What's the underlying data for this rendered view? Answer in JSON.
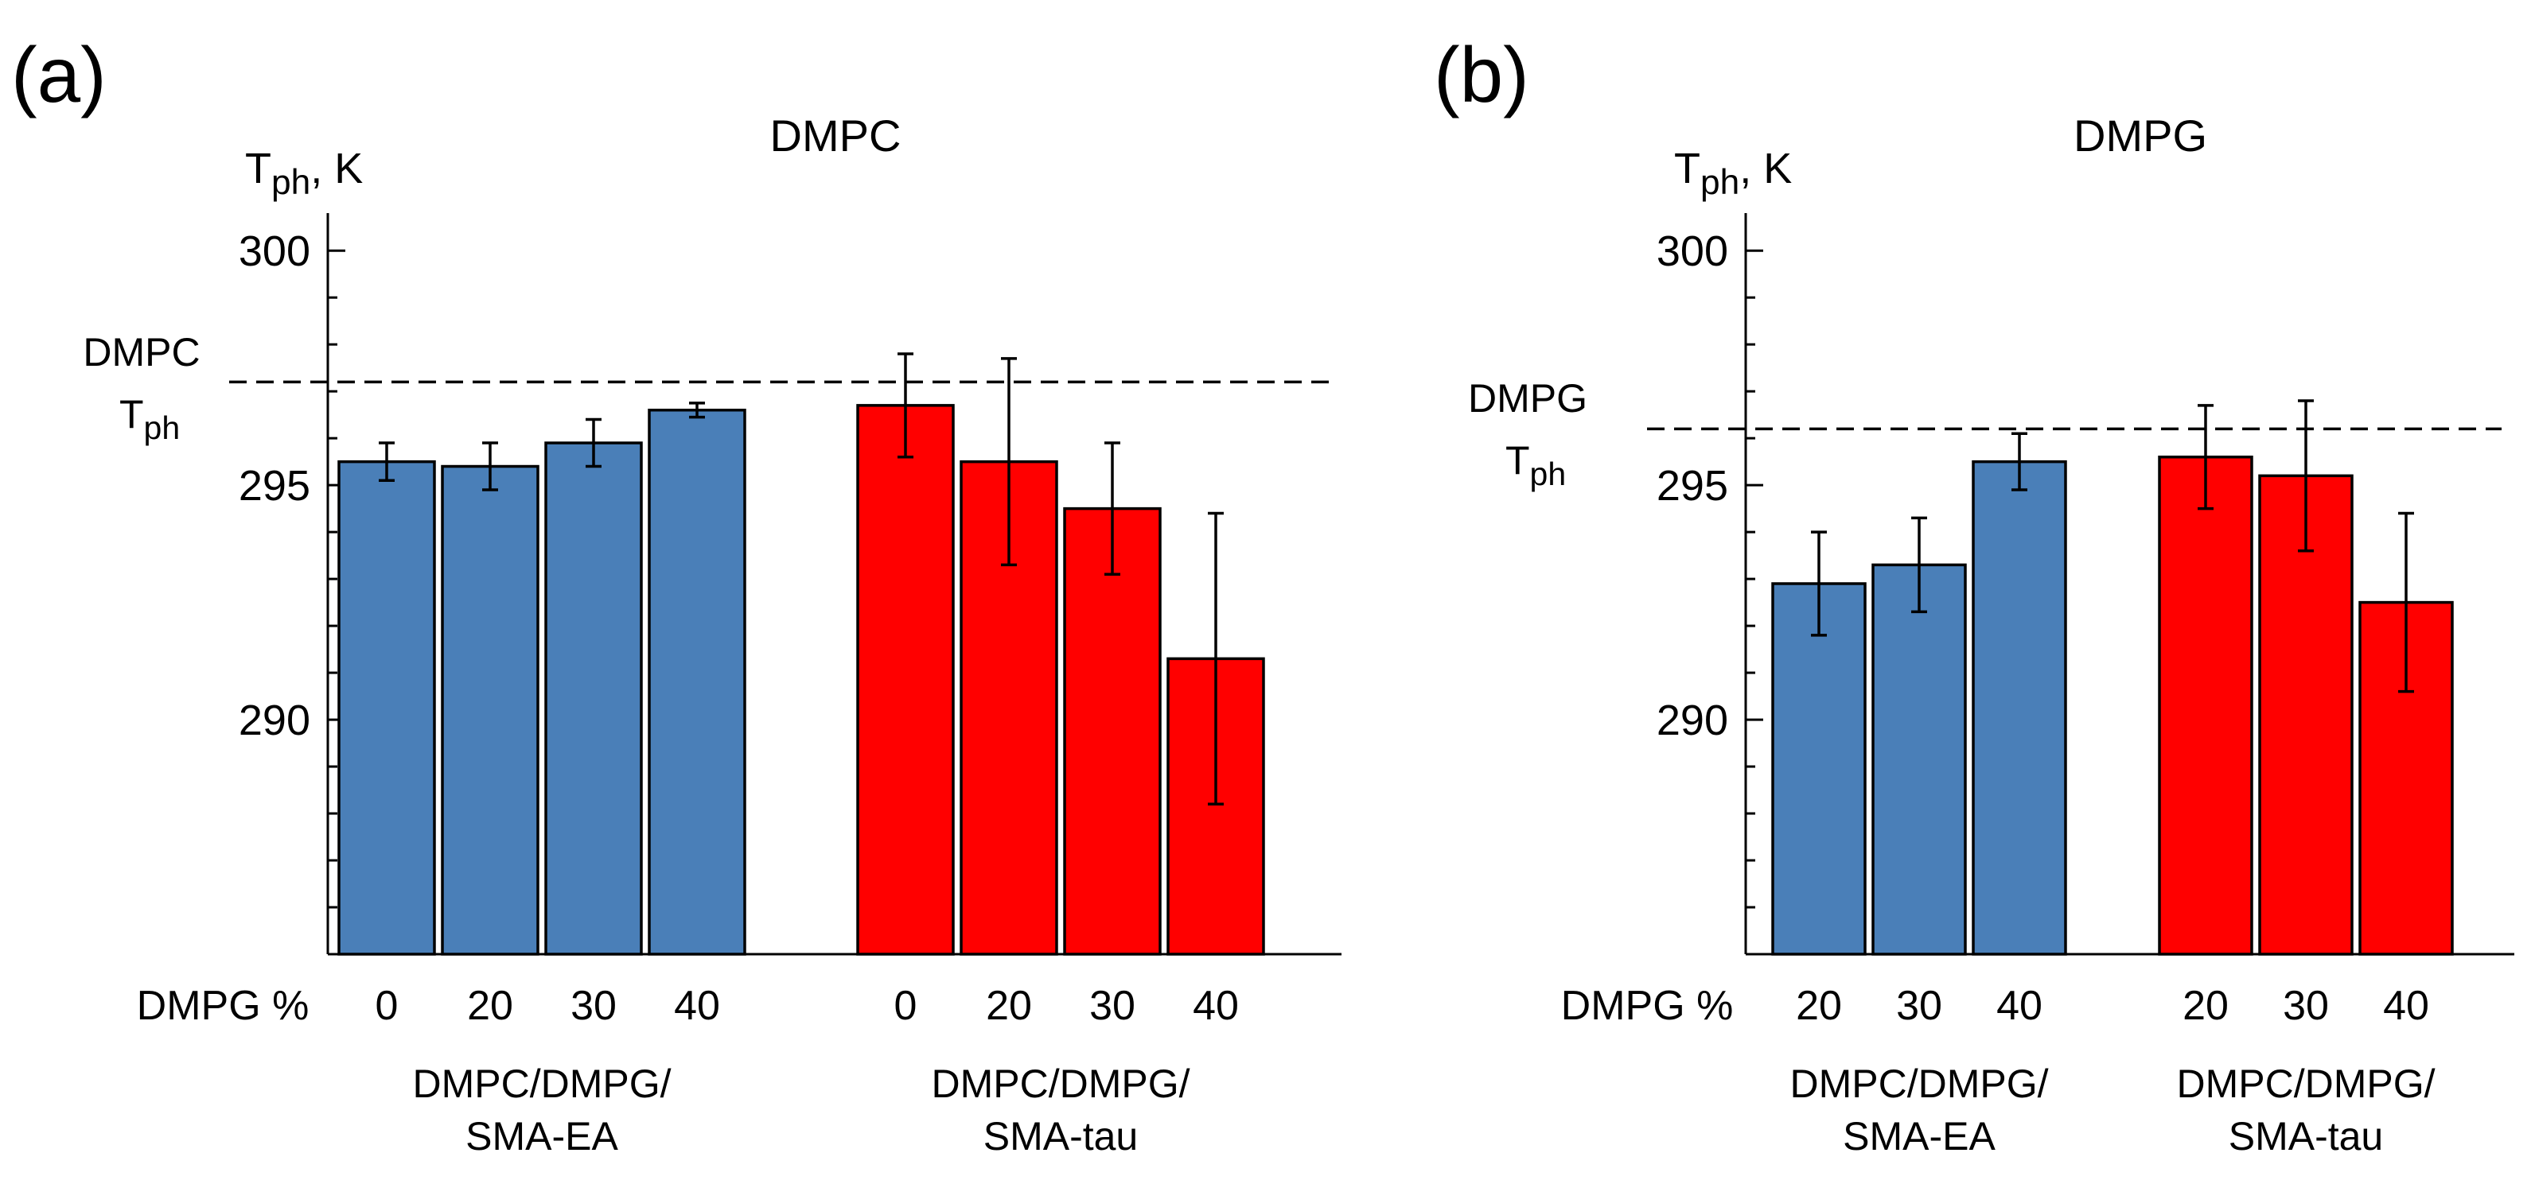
{
  "chart_data": [
    {
      "type": "bar",
      "panel_label": "(a)",
      "title": "DMPC",
      "ylabel_main": "T",
      "ylabel_sub": "ph",
      "ylabel_unit": ", K",
      "ylim": [
        285,
        300.8
      ],
      "yticks": [
        290,
        295,
        300
      ],
      "category_axis_label": "DMPG %",
      "reference": {
        "value": 297.2,
        "label_line1": "DMPC",
        "label_main": "T",
        "label_sub": "ph"
      },
      "groups": [
        {
          "name_line1": "DMPC/DMPG/",
          "name_line2": "SMA-EA",
          "color": "#4a7fb8",
          "categories": [
            "0",
            "20",
            "30",
            "40"
          ],
          "values": [
            295.5,
            295.4,
            295.9,
            296.6
          ],
          "errors": [
            0.4,
            0.5,
            0.5,
            0.15
          ]
        },
        {
          "name_line1": "DMPC/DMPG/",
          "name_line2": "SMA-tau",
          "color": "#ff0000",
          "categories": [
            "0",
            "20",
            "30",
            "40"
          ],
          "values": [
            296.7,
            295.5,
            294.5,
            291.3
          ],
          "errors": [
            1.1,
            2.2,
            1.4,
            3.1
          ]
        }
      ]
    },
    {
      "type": "bar",
      "panel_label": "(b)",
      "title": "DMPG",
      "ylabel_main": "T",
      "ylabel_sub": "ph",
      "ylabel_unit": ", K",
      "ylim": [
        285,
        300.8
      ],
      "yticks": [
        290,
        295,
        300
      ],
      "category_axis_label": "DMPG %",
      "reference": {
        "value": 296.2,
        "label_line1": "DMPG",
        "label_main": "T",
        "label_sub": "ph"
      },
      "groups": [
        {
          "name_line1": "DMPC/DMPG/",
          "name_line2": "SMA-EA",
          "color": "#4a7fb8",
          "categories": [
            "20",
            "30",
            "40"
          ],
          "values": [
            292.9,
            293.3,
            295.5
          ],
          "errors": [
            1.1,
            1.0,
            0.6
          ]
        },
        {
          "name_line1": "DMPC/DMPG/",
          "name_line2": "SMA-tau",
          "color": "#ff0000",
          "categories": [
            "20",
            "30",
            "40"
          ],
          "values": [
            295.6,
            295.2,
            292.5
          ],
          "errors": [
            1.1,
            1.6,
            1.9
          ]
        }
      ]
    }
  ]
}
